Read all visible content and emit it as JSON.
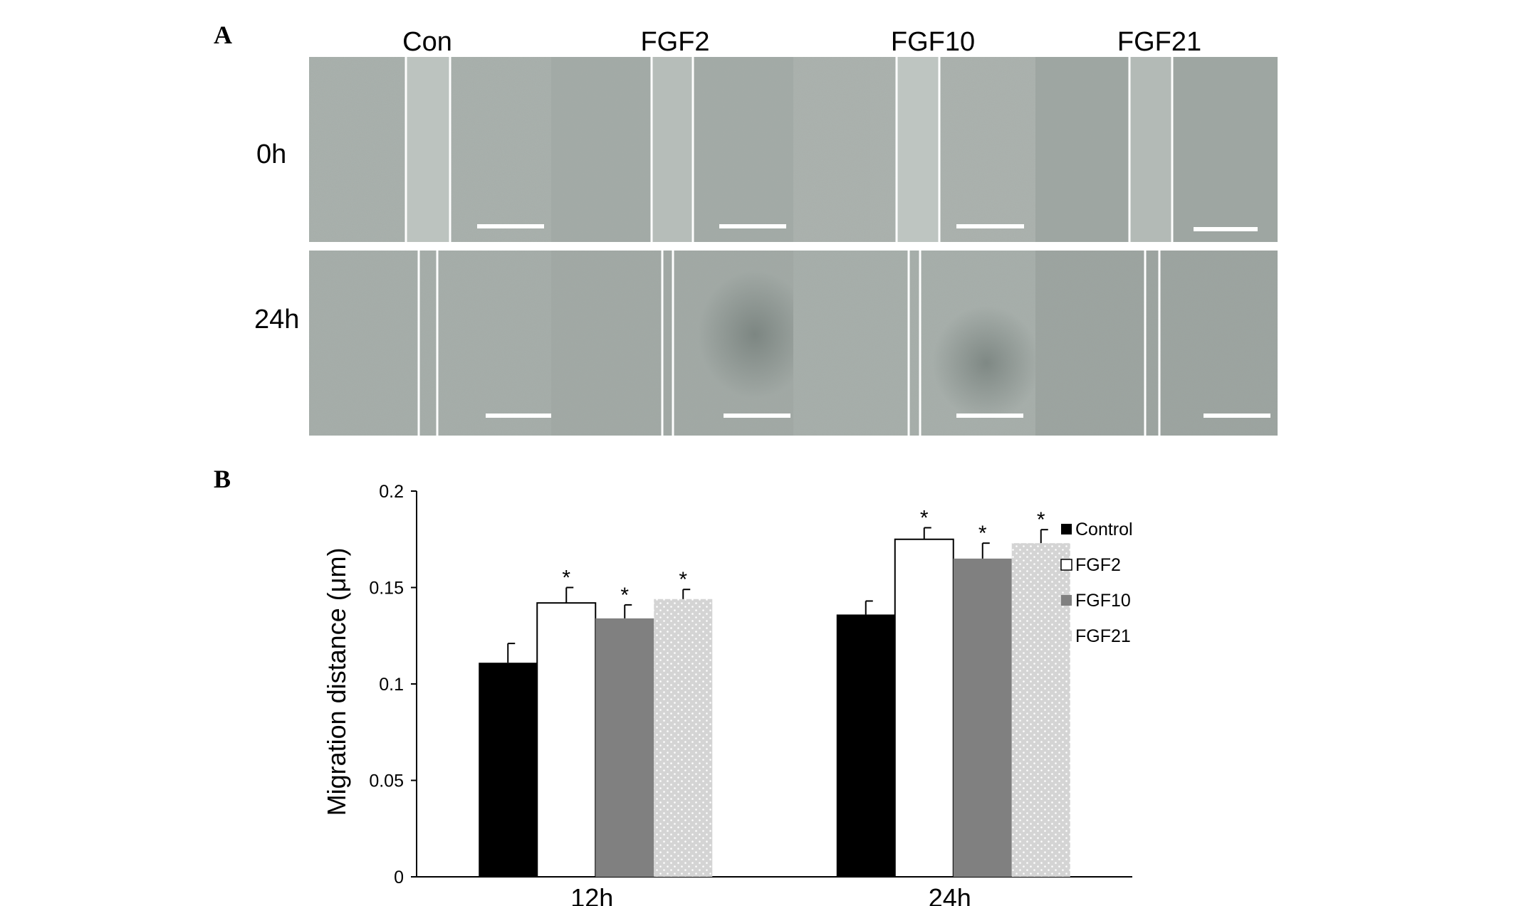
{
  "panel_a": {
    "letter": "A",
    "columns": [
      "Con",
      "FGF2",
      "FGF10",
      "FGF21"
    ],
    "rows": [
      "0h",
      "24h"
    ]
  },
  "panel_b": {
    "letter": "B"
  },
  "chart_data": {
    "type": "bar",
    "categories": [
      "12h",
      "24h"
    ],
    "series": [
      {
        "name": "Control",
        "values": [
          0.111,
          0.136
        ],
        "errors": [
          0.01,
          0.007
        ],
        "sig": [
          "",
          ""
        ],
        "color": "#000000"
      },
      {
        "name": "FGF2",
        "values": [
          0.142,
          0.175
        ],
        "errors": [
          0.008,
          0.006
        ],
        "sig": [
          "*",
          "*"
        ],
        "color": "#ffffff"
      },
      {
        "name": "FGF10",
        "values": [
          0.134,
          0.165
        ],
        "errors": [
          0.007,
          0.008
        ],
        "sig": [
          "*",
          "*"
        ],
        "color": "#808080"
      },
      {
        "name": "FGF21",
        "values": [
          0.144,
          0.173
        ],
        "errors": [
          0.005,
          0.007
        ],
        "sig": [
          "*",
          "*"
        ],
        "color": "#d0d0d0"
      }
    ],
    "ylabel": "Migration distance (μm)",
    "xlabel": "",
    "ylim": [
      0,
      0.2
    ],
    "yticks": [
      "0",
      "0.05",
      "0.1",
      "0.15",
      "0.2"
    ],
    "grid": false,
    "legend": "right"
  }
}
